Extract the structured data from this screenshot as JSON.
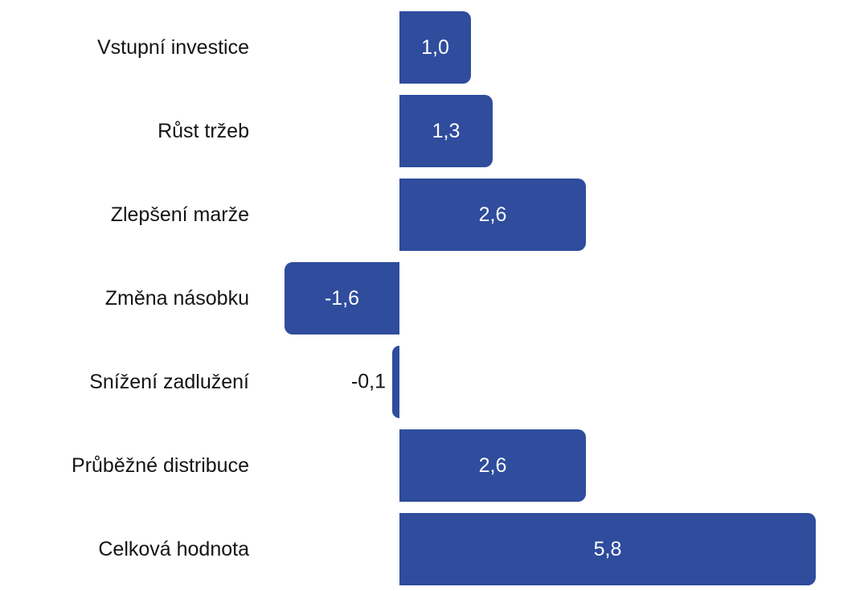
{
  "chart_data": {
    "type": "bar",
    "orientation": "horizontal",
    "title": "",
    "xlabel": "",
    "ylabel": "",
    "grid": false,
    "legend": false,
    "categories": [
      "Vstupní investice",
      "Růst tržeb",
      "Zlepšení marže",
      "Změna násobku",
      "Snížení zadlužení",
      "Průběžné distribuce",
      "Celková hodnota"
    ],
    "values": [
      1.0,
      1.3,
      2.6,
      -1.6,
      -0.1,
      2.6,
      5.8
    ],
    "value_labels": [
      "1,0",
      "1,3",
      "2,6",
      "-1,6",
      "-0,1",
      "2,6",
      "5,8"
    ],
    "xlim": [
      -2.09,
      6.53
    ],
    "colors": {
      "bar": "#2F4C9D",
      "value_inside": "#FFFFFF",
      "value_outside": "#141414",
      "category_label": "#141414",
      "background": "#FFFFFF"
    }
  }
}
